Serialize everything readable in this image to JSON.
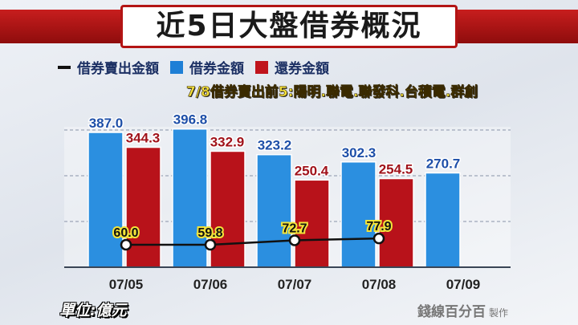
{
  "title": "近5日大盤借券概況",
  "legend": [
    {
      "label": "借券賣出金額",
      "color": "#111111"
    },
    {
      "label": "借券金額",
      "color": "#1e7fd6"
    },
    {
      "label": "還券金額",
      "color": "#c0141c"
    }
  ],
  "note": "7/8借券賣出前5:陽明.聯電.聯發科.台積電.群創",
  "unit": "單位:億元",
  "logo": {
    "brand": "錢線百分百",
    "suffix": "製作"
  },
  "chart_data": {
    "type": "bar",
    "categories": [
      "07/05",
      "07/06",
      "07/07",
      "07/08",
      "07/09"
    ],
    "series": [
      {
        "name": "借券金額",
        "type": "bar",
        "color": "#1e7fd6",
        "values": [
          387.0,
          396.8,
          323.2,
          302.3,
          270.7
        ]
      },
      {
        "name": "還券金額",
        "type": "bar",
        "color": "#c0141c",
        "values": [
          344.3,
          332.9,
          250.4,
          254.5,
          null
        ]
      },
      {
        "name": "借券賣出金額",
        "type": "line",
        "color": "#111111",
        "values": [
          60.0,
          59.8,
          72.7,
          77.9,
          null
        ]
      }
    ],
    "ylim": [
      0,
      400
    ],
    "grid": true,
    "legend_position": "top-left"
  }
}
